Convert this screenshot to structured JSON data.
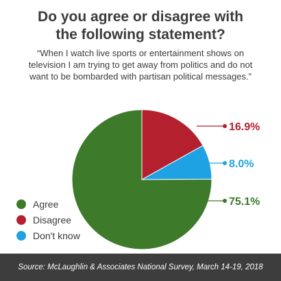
{
  "title_line1": "Do you agree or disagree with",
  "title_line2": "the following statement?",
  "quote": "“When I watch live sports or entertainment shows on television I am trying to get away from politics and do not want to be bombarded with partisan political messages.”",
  "source": "Source: McLaughlin & Associates National Survey, March 14-19, 2018",
  "chart_data": {
    "type": "pie",
    "slices": [
      {
        "name": "Agree",
        "value": 75.1,
        "label": "75.1%",
        "color": "#3d7a2a"
      },
      {
        "name": "Disagree",
        "value": 16.9,
        "label": "16.9%",
        "color": "#b5202e"
      },
      {
        "name": "Don't know",
        "value": 8.0,
        "label": "8.0%",
        "color": "#1fa2e3"
      }
    ],
    "legend_position": "bottom-left"
  }
}
